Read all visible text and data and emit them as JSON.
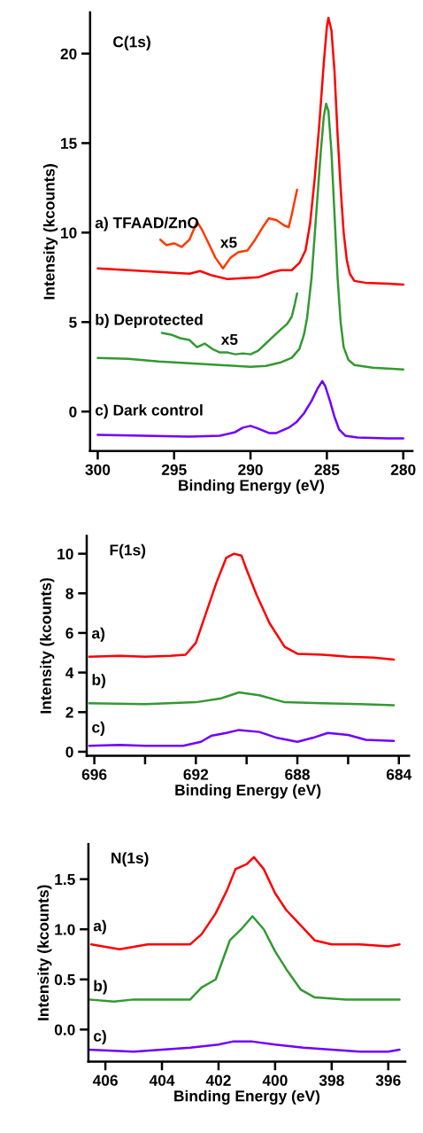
{
  "chart_data": [
    {
      "type": "line",
      "title": "C(1s)",
      "xlabel": "Binding Energy (eV)",
      "ylabel": "Intensity (kcounts)",
      "xlim": [
        300.5,
        279.4
      ],
      "ylim": [
        -2.2,
        22.3
      ],
      "xticks": [
        300,
        295,
        290,
        285,
        280
      ],
      "yticks": [
        0,
        5,
        10,
        15,
        20
      ],
      "annotations": [
        "x5",
        "x5"
      ],
      "series": [
        {
          "name": "a) TFAAD/ZnO",
          "color": "#ff0000",
          "x": [
            300,
            298,
            296,
            294,
            293.3,
            292.5,
            291.5,
            290.5,
            289.5,
            288.5,
            288,
            287.3,
            286.8,
            286.4,
            286.1,
            285.8,
            285.5,
            285.2,
            285.0,
            284.9,
            284.7,
            284.5,
            284.3,
            284.1,
            283.9,
            283.7,
            283.5,
            283.2,
            282.5,
            281,
            280
          ],
          "values": [
            8.0,
            7.9,
            7.8,
            7.7,
            7.85,
            7.6,
            7.4,
            7.45,
            7.5,
            7.8,
            7.9,
            7.9,
            8.3,
            9.0,
            10.5,
            13.0,
            16.0,
            19.5,
            21.5,
            22.0,
            21.3,
            19.0,
            15.5,
            12.5,
            10.0,
            8.5,
            7.7,
            7.3,
            7.2,
            7.15,
            7.1
          ]
        },
        {
          "color": "#ff3a00",
          "x": [
            295.9,
            295.5,
            295,
            294.5,
            294,
            293.5,
            293.2,
            292.8,
            292.3,
            291.8,
            291.3,
            290.8,
            290.2,
            289.7,
            289.2,
            288.8,
            288.3,
            287.8,
            287.5,
            287.3,
            287.1,
            286.95
          ],
          "values": [
            9.6,
            9.3,
            9.4,
            9.2,
            9.6,
            10.6,
            10.2,
            9.5,
            8.6,
            8.0,
            8.6,
            8.9,
            9.0,
            9.6,
            10.3,
            10.8,
            10.7,
            10.4,
            10.3,
            11.0,
            11.8,
            12.4
          ]
        },
        {
          "name": "b) Deprotected",
          "color": "#339933",
          "x": [
            300,
            298,
            296,
            294,
            292,
            290,
            289,
            288,
            287.3,
            286.8,
            286.5,
            286.3,
            286.0,
            285.7,
            285.4,
            285.2,
            285.05,
            284.9,
            284.7,
            284.5,
            284.3,
            284.1,
            283.9,
            283.6,
            283.2,
            282,
            281,
            280
          ],
          "values": [
            3.0,
            2.95,
            2.8,
            2.7,
            2.6,
            2.5,
            2.55,
            2.75,
            3.0,
            3.5,
            4.3,
            5.2,
            7.5,
            11.0,
            14.5,
            16.5,
            17.2,
            16.8,
            14.5,
            11.0,
            7.5,
            5.0,
            3.6,
            2.9,
            2.6,
            2.45,
            2.4,
            2.35
          ]
        },
        {
          "color": "#339933",
          "x": [
            295.8,
            295.2,
            294.6,
            294,
            293.5,
            293,
            292.5,
            292,
            291.5,
            291,
            290.5,
            290,
            289.5,
            289,
            288.5,
            288,
            287.6,
            287.3,
            287.1,
            286.95
          ],
          "values": [
            4.4,
            4.3,
            4.1,
            4.0,
            3.6,
            3.8,
            3.5,
            3.3,
            3.3,
            3.2,
            3.25,
            3.2,
            3.4,
            3.8,
            4.2,
            4.6,
            4.9,
            5.3,
            6.0,
            6.6
          ]
        },
        {
          "name": "c) Dark control",
          "color": "#7000ff",
          "x": [
            300,
            297,
            294,
            292,
            291,
            290.5,
            290,
            289.5,
            288.8,
            288.3,
            287.5,
            287,
            286.5,
            286,
            285.6,
            285.3,
            285.1,
            284.8,
            284.5,
            284.2,
            283.8,
            283,
            281,
            280
          ],
          "values": [
            -1.3,
            -1.35,
            -1.4,
            -1.35,
            -1.15,
            -0.9,
            -0.8,
            -0.95,
            -1.2,
            -1.2,
            -0.9,
            -0.6,
            -0.1,
            0.6,
            1.3,
            1.7,
            1.4,
            0.6,
            -0.3,
            -1.0,
            -1.35,
            -1.45,
            -1.5,
            -1.5
          ]
        }
      ]
    },
    {
      "type": "line",
      "title": "F(1s)",
      "xlabel": "Binding Energy (eV)",
      "ylabel": "Intensity (kcounts)",
      "xlim": [
        696.3,
        683.6
      ],
      "ylim": [
        -0.2,
        10.9
      ],
      "xticks": [
        696,
        {
          "value": 694,
          "label": null
        },
        692,
        {
          "value": 690,
          "label": null
        },
        688,
        {
          "value": 686,
          "label": null
        },
        684
      ],
      "yticks": [
        0,
        2,
        4,
        6,
        8,
        10
      ],
      "series": [
        {
          "name": "a)",
          "color": "#ff0000",
          "x": [
            696.2,
            695,
            694,
            693,
            692.4,
            692,
            691.6,
            691.2,
            690.8,
            690.5,
            690.2,
            690,
            689.6,
            689.1,
            688.5,
            688,
            687,
            686,
            685,
            684.2
          ],
          "values": [
            4.8,
            4.85,
            4.8,
            4.85,
            4.9,
            5.5,
            7.0,
            8.5,
            9.8,
            10.0,
            9.9,
            9.2,
            7.9,
            6.5,
            5.3,
            4.95,
            4.9,
            4.8,
            4.75,
            4.65
          ]
        },
        {
          "name": "b)",
          "color": "#339933",
          "x": [
            696.2,
            694,
            692,
            691,
            690.3,
            689.5,
            688.5,
            687,
            685.5,
            684.2
          ],
          "values": [
            2.45,
            2.4,
            2.5,
            2.7,
            3.0,
            2.85,
            2.5,
            2.45,
            2.4,
            2.35
          ]
        },
        {
          "name": "c)",
          "color": "#7000ff",
          "x": [
            696.2,
            695,
            694,
            692.5,
            691.8,
            691.4,
            690.8,
            690.3,
            689.5,
            688.8,
            688,
            687.4,
            686.8,
            686,
            685.3,
            684.2
          ],
          "values": [
            0.3,
            0.35,
            0.3,
            0.3,
            0.5,
            0.8,
            0.95,
            1.1,
            1.0,
            0.7,
            0.5,
            0.7,
            0.95,
            0.85,
            0.6,
            0.55
          ]
        }
      ]
    },
    {
      "type": "line",
      "title": "N(1s)",
      "xlabel": "Binding Energy (eV)",
      "ylabel": "Intensity (kcounts)",
      "xlim": [
        406.6,
        395.4
      ],
      "ylim": [
        -0.32,
        1.85
      ],
      "xticks": [
        406,
        404,
        402,
        400,
        398,
        396
      ],
      "yticks": [
        {
          "value": 0,
          "label": "0.0"
        },
        0.5,
        {
          "value": 1,
          "label": "1.0"
        },
        1.5
      ],
      "series": [
        {
          "name": "a)",
          "color": "#ff0000",
          "x": [
            406.5,
            405.5,
            404.5,
            403.5,
            403,
            402.6,
            402.1,
            401.7,
            401.4,
            401.0,
            400.75,
            400.4,
            400,
            399.6,
            399.1,
            398.6,
            398,
            397,
            396,
            395.6
          ],
          "values": [
            0.85,
            0.8,
            0.85,
            0.85,
            0.85,
            0.95,
            1.16,
            1.39,
            1.6,
            1.65,
            1.72,
            1.6,
            1.36,
            1.19,
            1.04,
            0.89,
            0.85,
            0.85,
            0.83,
            0.85
          ]
        },
        {
          "name": "b)",
          "color": "#339933",
          "x": [
            406.6,
            405.7,
            405,
            404,
            403,
            402.6,
            402.1,
            401.6,
            401.2,
            400.8,
            400.4,
            400,
            399.6,
            399.1,
            398.6,
            397.5,
            396.5,
            395.6
          ],
          "values": [
            0.3,
            0.28,
            0.3,
            0.3,
            0.3,
            0.42,
            0.5,
            0.89,
            1.0,
            1.13,
            1.0,
            0.78,
            0.6,
            0.4,
            0.32,
            0.3,
            0.3,
            0.3
          ]
        },
        {
          "name": "c)",
          "color": "#7000ff",
          "x": [
            406.6,
            405,
            404,
            403,
            402,
            401.5,
            400.8,
            400,
            399,
            398,
            397,
            396,
            395.6
          ],
          "values": [
            -0.2,
            -0.22,
            -0.2,
            -0.18,
            -0.15,
            -0.12,
            -0.12,
            -0.15,
            -0.18,
            -0.2,
            -0.22,
            -0.22,
            -0.2
          ]
        }
      ]
    }
  ]
}
